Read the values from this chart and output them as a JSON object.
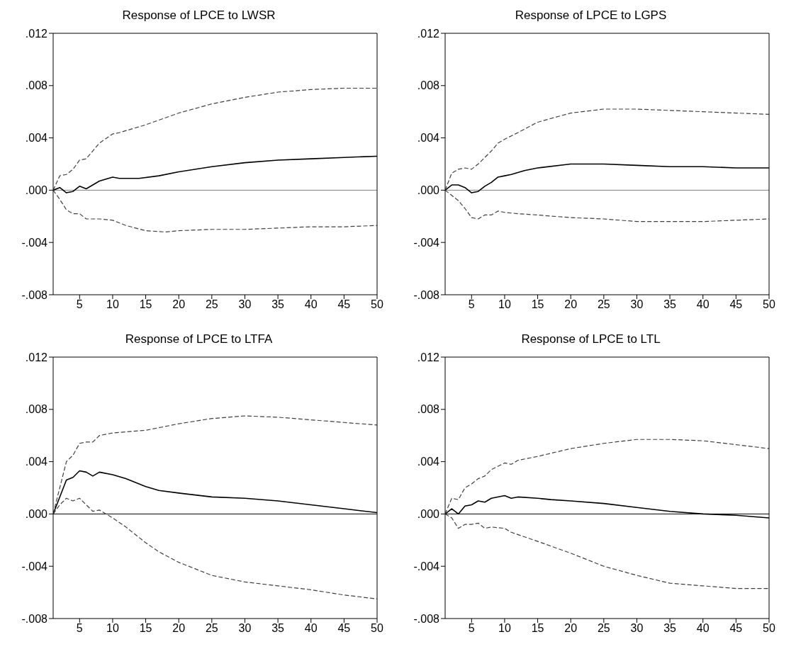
{
  "chart_data": [
    {
      "type": "line",
      "title": "Response of LPCE to LWSR",
      "xlim": [
        1,
        50
      ],
      "xticks": [
        5,
        10,
        15,
        20,
        25,
        30,
        35,
        40,
        45,
        50
      ],
      "ylim": [
        -0.008,
        0.012
      ],
      "yticks": [
        {
          "value": -0.008,
          "label": "-.008"
        },
        {
          "value": -0.004,
          "label": "-.004"
        },
        {
          "value": 0,
          "label": ".000"
        },
        {
          "value": 0.004,
          "label": ".004"
        },
        {
          "value": 0.008,
          "label": ".008"
        },
        {
          "value": 0.012,
          "label": ".012"
        }
      ],
      "ref_lines": [
        {
          "axis": "y",
          "value": 0,
          "color": "#808080"
        }
      ],
      "series": [
        {
          "color": "#000000",
          "line_style": "solid",
          "x": [
            1,
            2,
            3,
            4,
            5,
            6,
            7,
            8,
            10,
            11,
            14,
            17,
            20,
            25,
            30,
            35,
            40,
            45,
            50
          ],
          "values": [
            0,
            0.0002,
            -0.0002,
            -0.0001,
            0.0003,
            0.0001,
            0.0004,
            0.0007,
            0.001,
            0.0009,
            0.0009,
            0.0011,
            0.0014,
            0.0018,
            0.0021,
            0.0023,
            0.0024,
            0.0025,
            0.0026
          ]
        },
        {
          "color": "#404040",
          "line_style": "dashed",
          "x": [
            1,
            2,
            3,
            4,
            5,
            6,
            8,
            10,
            11,
            15,
            20,
            25,
            30,
            35,
            40,
            45,
            50
          ],
          "values": [
            0,
            0.0011,
            0.0012,
            0.0016,
            0.0023,
            0.0024,
            0.0036,
            0.0043,
            0.0044,
            0.005,
            0.0059,
            0.0066,
            0.0071,
            0.0075,
            0.0077,
            0.0078,
            0.0078
          ]
        },
        {
          "color": "#404040",
          "line_style": "dashed",
          "x": [
            1,
            2,
            3,
            4,
            5,
            6,
            7,
            8,
            10,
            12,
            15,
            18,
            20,
            25,
            30,
            35,
            40,
            45,
            50
          ],
          "values": [
            0,
            -0.0007,
            -0.0015,
            -0.0018,
            -0.0018,
            -0.0022,
            -0.0022,
            -0.0022,
            -0.0023,
            -0.0027,
            -0.0031,
            -0.0032,
            -0.0031,
            -0.003,
            -0.003,
            -0.0029,
            -0.0028,
            -0.0028,
            -0.0027
          ]
        }
      ]
    },
    {
      "type": "line",
      "title": "Response of LPCE to LGPS",
      "xlim": [
        1,
        50
      ],
      "xticks": [
        5,
        10,
        15,
        20,
        25,
        30,
        35,
        40,
        45,
        50
      ],
      "ylim": [
        -0.008,
        0.012
      ],
      "yticks": [
        {
          "value": -0.008,
          "label": "-.008"
        },
        {
          "value": -0.004,
          "label": "-.004"
        },
        {
          "value": 0,
          "label": ".000"
        },
        {
          "value": 0.004,
          "label": ".004"
        },
        {
          "value": 0.008,
          "label": ".008"
        },
        {
          "value": 0.012,
          "label": ".012"
        }
      ],
      "ref_lines": [
        {
          "axis": "y",
          "value": 0,
          "color": "#808080"
        }
      ],
      "series": [
        {
          "color": "#000000",
          "line_style": "solid",
          "x": [
            1,
            2,
            3,
            4,
            5,
            6,
            7,
            8,
            9,
            10,
            11,
            13,
            15,
            20,
            25,
            30,
            35,
            40,
            45,
            50
          ],
          "values": [
            0,
            0.0004,
            0.0004,
            0.0002,
            -0.0002,
            -0.0001,
            0.0003,
            0.0006,
            0.001,
            0.0011,
            0.0012,
            0.0015,
            0.0017,
            0.002,
            0.002,
            0.0019,
            0.0018,
            0.0018,
            0.0017,
            0.0017
          ]
        },
        {
          "color": "#404040",
          "line_style": "dashed",
          "x": [
            1,
            2,
            3,
            4,
            5,
            6,
            8,
            9,
            10,
            12,
            15,
            20,
            25,
            30,
            35,
            40,
            45,
            50
          ],
          "values": [
            0,
            0.0013,
            0.0016,
            0.0017,
            0.0016,
            0.002,
            0.003,
            0.0036,
            0.0039,
            0.0044,
            0.0052,
            0.0059,
            0.0062,
            0.0062,
            0.0061,
            0.006,
            0.0059,
            0.0058
          ]
        },
        {
          "color": "#404040",
          "line_style": "dashed",
          "x": [
            1,
            2,
            3,
            4,
            5,
            6,
            7,
            8,
            9,
            10,
            12,
            15,
            20,
            25,
            30,
            35,
            40,
            45,
            50
          ],
          "values": [
            0,
            -0.0004,
            -0.0008,
            -0.0014,
            -0.0021,
            -0.0022,
            -0.0019,
            -0.0019,
            -0.0016,
            -0.0017,
            -0.0018,
            -0.0019,
            -0.0021,
            -0.0022,
            -0.0024,
            -0.0024,
            -0.0024,
            -0.0023,
            -0.0022
          ]
        }
      ]
    },
    {
      "type": "line",
      "title": "Response of LPCE to LTFA",
      "xlim": [
        1,
        50
      ],
      "xticks": [
        5,
        10,
        15,
        20,
        25,
        30,
        35,
        40,
        45,
        50
      ],
      "ylim": [
        -0.008,
        0.012
      ],
      "yticks": [
        {
          "value": -0.008,
          "label": "-.008"
        },
        {
          "value": -0.004,
          "label": "-.004"
        },
        {
          "value": 0,
          "label": ".000"
        },
        {
          "value": 0.004,
          "label": ".004"
        },
        {
          "value": 0.008,
          "label": ".008"
        },
        {
          "value": 0.012,
          "label": ".012"
        }
      ],
      "ref_lines": [
        {
          "axis": "y",
          "value": 0,
          "color": "#000000"
        }
      ],
      "series": [
        {
          "color": "#000000",
          "line_style": "solid",
          "x": [
            1,
            2,
            3,
            4,
            5,
            6,
            7,
            8,
            10,
            12,
            15,
            17,
            20,
            25,
            30,
            35,
            40,
            45,
            50
          ],
          "values": [
            0,
            0.0013,
            0.0026,
            0.0028,
            0.0033,
            0.0032,
            0.0029,
            0.0032,
            0.003,
            0.0027,
            0.0021,
            0.0018,
            0.0016,
            0.0013,
            0.0012,
            0.001,
            0.0007,
            0.0004,
            0.0001
          ]
        },
        {
          "color": "#404040",
          "line_style": "dashed",
          "x": [
            1,
            2,
            3,
            4,
            5,
            6,
            7,
            8,
            9,
            10,
            15,
            20,
            25,
            30,
            35,
            40,
            45,
            50
          ],
          "values": [
            0,
            0.002,
            0.004,
            0.0045,
            0.0054,
            0.0055,
            0.0055,
            0.006,
            0.0061,
            0.0062,
            0.0064,
            0.0069,
            0.0073,
            0.0075,
            0.0074,
            0.0072,
            0.007,
            0.0068
          ]
        },
        {
          "color": "#404040",
          "line_style": "dashed",
          "x": [
            1,
            2,
            3,
            4,
            5,
            6,
            7,
            8,
            9,
            10,
            12,
            15,
            17,
            20,
            25,
            30,
            35,
            40,
            45,
            50
          ],
          "values": [
            0,
            0.0007,
            0.0012,
            0.001,
            0.0012,
            0.0007,
            0.0002,
            0.0003,
            0,
            -0.0003,
            -0.001,
            -0.0022,
            -0.0029,
            -0.0037,
            -0.0047,
            -0.0052,
            -0.0055,
            -0.0058,
            -0.0062,
            -0.0065
          ]
        }
      ]
    },
    {
      "type": "line",
      "title": "Response of LPCE to LTL",
      "xlim": [
        1,
        50
      ],
      "xticks": [
        5,
        10,
        15,
        20,
        25,
        30,
        35,
        40,
        45,
        50
      ],
      "ylim": [
        -0.008,
        0.012
      ],
      "yticks": [
        {
          "value": -0.008,
          "label": "-.008"
        },
        {
          "value": -0.004,
          "label": "-.004"
        },
        {
          "value": 0,
          "label": ".000"
        },
        {
          "value": 0.004,
          "label": ".004"
        },
        {
          "value": 0.008,
          "label": ".008"
        },
        {
          "value": 0.012,
          "label": ".012"
        }
      ],
      "ref_lines": [
        {
          "axis": "y",
          "value": 0,
          "color": "#000000"
        }
      ],
      "series": [
        {
          "color": "#000000",
          "line_style": "solid",
          "x": [
            1,
            2,
            3,
            4,
            5,
            6,
            7,
            8,
            10,
            11,
            12,
            15,
            17,
            20,
            25,
            30,
            35,
            40,
            45,
            50
          ],
          "values": [
            0,
            0.0004,
            0,
            0.0006,
            0.0007,
            0.001,
            0.0009,
            0.0012,
            0.0014,
            0.0012,
            0.0013,
            0.0012,
            0.0011,
            0.001,
            0.0008,
            0.0005,
            0.0002,
            0,
            -0.0001,
            -0.0003
          ]
        },
        {
          "color": "#404040",
          "line_style": "dashed",
          "x": [
            1,
            2,
            3,
            4,
            5,
            6,
            7,
            8,
            10,
            11,
            12,
            15,
            20,
            25,
            30,
            35,
            40,
            45,
            50
          ],
          "values": [
            0,
            0.0012,
            0.0011,
            0.002,
            0.0023,
            0.0027,
            0.0029,
            0.0034,
            0.0039,
            0.0038,
            0.0041,
            0.0044,
            0.005,
            0.0054,
            0.0057,
            0.0057,
            0.0056,
            0.0053,
            0.005
          ]
        },
        {
          "color": "#404040",
          "line_style": "dashed",
          "x": [
            1,
            2,
            3,
            4,
            5,
            6,
            7,
            8,
            10,
            11,
            15,
            20,
            25,
            30,
            35,
            40,
            45,
            50
          ],
          "values": [
            0,
            -0.0003,
            -0.0011,
            -0.0008,
            -0.0008,
            -0.0007,
            -0.0011,
            -0.001,
            -0.0011,
            -0.0014,
            -0.0021,
            -0.003,
            -0.004,
            -0.0047,
            -0.0053,
            -0.0055,
            -0.0057,
            -0.0057
          ]
        }
      ]
    }
  ]
}
